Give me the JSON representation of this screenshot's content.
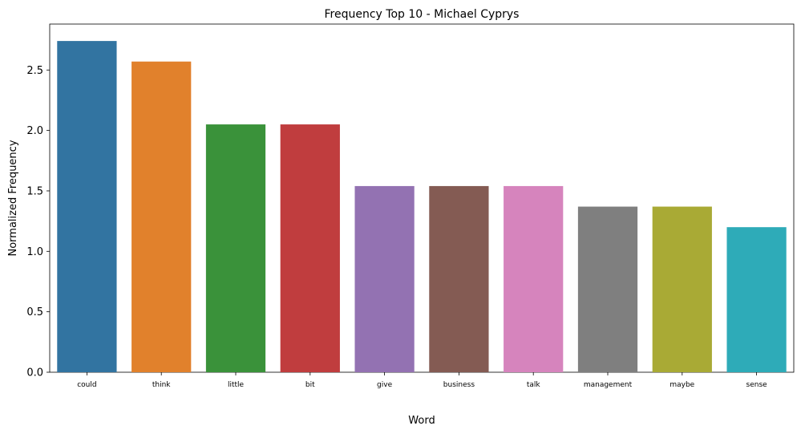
{
  "chart_data": {
    "type": "bar",
    "title": "Frequency Top 10 - Michael Cyprys",
    "xlabel": "Word",
    "ylabel": "Normalized Frequency",
    "categories": [
      "could",
      "think",
      "little",
      "bit",
      "give",
      "business",
      "talk",
      "management",
      "maybe",
      "sense"
    ],
    "values": [
      2.74,
      2.57,
      2.05,
      2.05,
      1.54,
      1.54,
      1.54,
      1.37,
      1.37,
      1.2
    ],
    "colors": [
      "#3274a1",
      "#e1812c",
      "#3a923a",
      "#c03d3e",
      "#9372b2",
      "#845b53",
      "#d684bd",
      "#7f7f7f",
      "#a9aa35",
      "#2eabb8"
    ],
    "ylim": [
      0,
      2.88
    ],
    "yticks": [
      0.0,
      0.5,
      1.0,
      1.5,
      2.0,
      2.5
    ],
    "ytick_labels": [
      "0.0",
      "0.5",
      "1.0",
      "1.5",
      "2.0",
      "2.5"
    ],
    "grid": false,
    "legend": "none"
  }
}
